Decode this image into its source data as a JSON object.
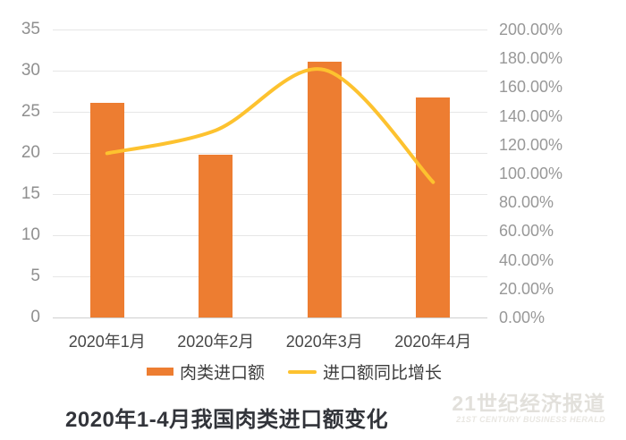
{
  "chart_data": {
    "type": "bar",
    "combo": true,
    "title": "2020年1-4月我国肉类进口额变化",
    "categories": [
      "2020年1月",
      "2020年2月",
      "2020年3月",
      "2020年4月"
    ],
    "series": [
      {
        "name": "肉类进口额",
        "type": "bar",
        "axis": "left",
        "color": "#ED7D31",
        "values": [
          26.1,
          19.8,
          31.1,
          26.7
        ]
      },
      {
        "name": "进口额同比增长",
        "type": "line",
        "axis": "right",
        "color": "#FDC22F",
        "unit": "%",
        "values": [
          114,
          130,
          172,
          94
        ]
      }
    ],
    "left_axis": {
      "min": 0,
      "max": 35,
      "step": 5,
      "ticks": [
        "35",
        "30",
        "25",
        "20",
        "15",
        "10",
        "5",
        "0"
      ],
      "tick_values": [
        35,
        30,
        25,
        20,
        15,
        10,
        5,
        0
      ]
    },
    "right_axis": {
      "min": 0,
      "max": 200,
      "step": 20,
      "ticks": [
        "200.00%",
        "180.00%",
        "160.00%",
        "140.00%",
        "120.00%",
        "100.00%",
        "80.00%",
        "60.00%",
        "40.00%",
        "20.00%",
        "0.00%"
      ],
      "tick_values": [
        200,
        180,
        160,
        140,
        120,
        100,
        80,
        60,
        40,
        20,
        0
      ]
    },
    "grid": true,
    "legend_position": "bottom"
  },
  "legend": {
    "items": [
      {
        "label": "肉类进口额",
        "swatch": "bar",
        "color": "#ED7D31"
      },
      {
        "label": "进口额同比增长",
        "swatch": "line",
        "color": "#FDC22F"
      }
    ]
  },
  "title": {
    "text": "2020年1-4月我国肉类进口额变化"
  },
  "watermark": {
    "main": "21世纪经济报道",
    "sub": "21ST CENTURY BUSINESS HERALD"
  },
  "colors": {
    "bar": "#ED7D31",
    "line": "#FDC22F",
    "grid": "#e6e6e6",
    "axis_line": "#cfcfcf",
    "left_tick_text": "#8f8f8f",
    "right_tick_text": "#989898",
    "x_label_text": "#474747",
    "title_text": "#32343a",
    "watermark_text": "#e2e0db",
    "background": "#ffffff"
  }
}
